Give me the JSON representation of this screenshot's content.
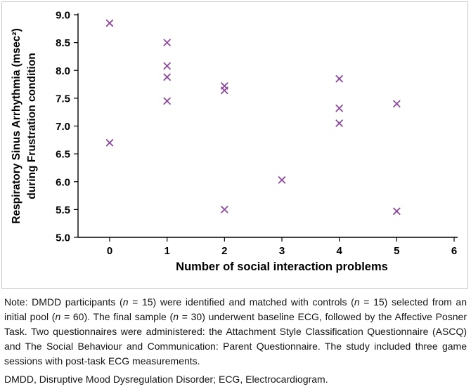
{
  "figure": {
    "background": "#ffffff",
    "border_color": "#c8c8c8"
  },
  "chart_data": {
    "type": "scatter",
    "title": "",
    "xlabel": "Number of social interaction problems",
    "ylabel": "Respiratory Sinus Arrhythmia (msec²) during Frustration condition",
    "ylabel_lines": [
      "Respiratory Sinus Arrhythmia (msec²)",
      "during Frustration condition"
    ],
    "xlim": [
      0,
      6
    ],
    "ylim": [
      5.0,
      9.0
    ],
    "grid": false,
    "legend": "none",
    "marker": "x",
    "marker_color": "#8c4a9c",
    "axis_color": "#000000",
    "x_ticks": [
      {
        "v": 0,
        "label": "0"
      },
      {
        "v": 1,
        "label": "1"
      },
      {
        "v": 2,
        "label": "2"
      },
      {
        "v": 3,
        "label": "3"
      },
      {
        "v": 4,
        "label": "4"
      },
      {
        "v": 5,
        "label": "5"
      },
      {
        "v": 6,
        "label": "6"
      }
    ],
    "y_ticks": [
      {
        "v": 5.0,
        "label": "5.0"
      },
      {
        "v": 5.5,
        "label": "5.5"
      },
      {
        "v": 6.0,
        "label": "6.0"
      },
      {
        "v": 6.5,
        "label": "6.5"
      },
      {
        "v": 7.0,
        "label": "7.0"
      },
      {
        "v": 7.5,
        "label": "7.5"
      },
      {
        "v": 8.0,
        "label": "8.0"
      },
      {
        "v": 8.5,
        "label": "8.5"
      },
      {
        "v": 9.0,
        "label": "9.0"
      }
    ],
    "points": [
      {
        "x": 0,
        "y": 8.85
      },
      {
        "x": 0,
        "y": 6.7
      },
      {
        "x": 1,
        "y": 8.5
      },
      {
        "x": 1,
        "y": 8.08
      },
      {
        "x": 1,
        "y": 7.88
      },
      {
        "x": 1,
        "y": 7.45
      },
      {
        "x": 2,
        "y": 7.72
      },
      {
        "x": 2,
        "y": 7.64
      },
      {
        "x": 2,
        "y": 5.5
      },
      {
        "x": 3,
        "y": 6.03
      },
      {
        "x": 4,
        "y": 7.85
      },
      {
        "x": 4,
        "y": 7.32
      },
      {
        "x": 4,
        "y": 7.05
      },
      {
        "x": 5,
        "y": 7.4
      },
      {
        "x": 5,
        "y": 5.47
      }
    ]
  },
  "note": {
    "p1_segments": [
      {
        "text": "Note: DMDD participants ("
      },
      {
        "text": "n",
        "italic": true
      },
      {
        "text": " = 15) were identified and matched with controls ("
      },
      {
        "text": "n",
        "italic": true
      },
      {
        "text": " = 15) selected from an initial pool ("
      },
      {
        "text": "n",
        "italic": true
      },
      {
        "text": " = 60). The final sample ("
      },
      {
        "text": "n",
        "italic": true
      },
      {
        "text": " = 30) underwent baseline ECG, followed by the Affective Posner Task. Two questionnaires were administered: the Attachment Style Classification Questionnaire (ASCQ) and The Social Behaviour and Communication: Parent Questionnaire. The study included three game sessions with post-task ECG measurements."
      }
    ],
    "p2": "DMDD, Disruptive Mood Dysregulation Disorder; ECG, Electrocardiogram."
  }
}
